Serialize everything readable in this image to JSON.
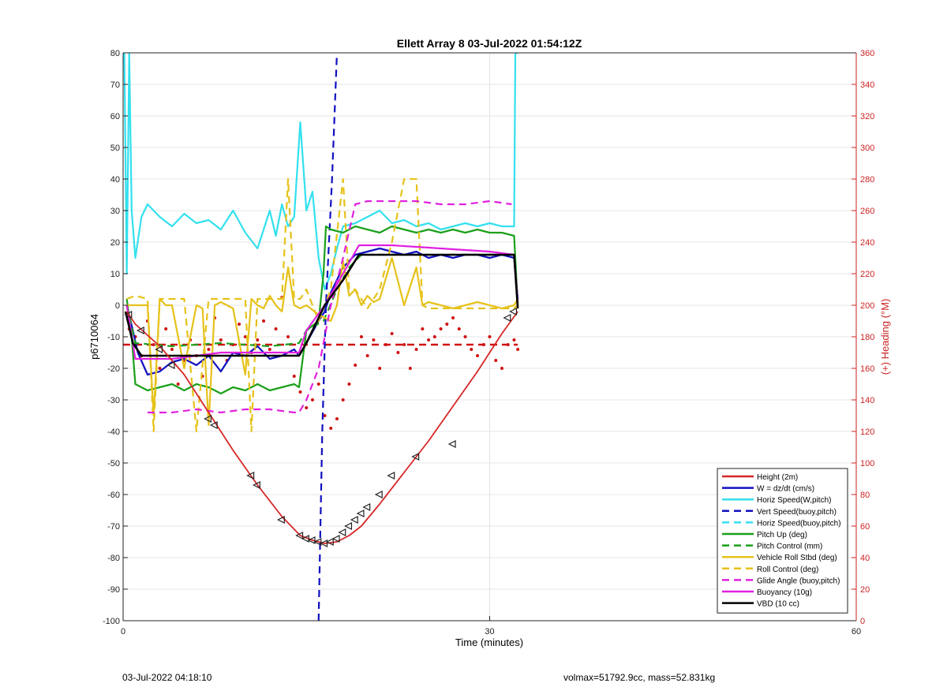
{
  "footer": {
    "timestamp": "03-Jul-2022 04:18:10",
    "info": "volmax=51792.9cc, mass=52.831kg"
  },
  "chart_data": {
    "type": "line",
    "title": "Ellett Array 8 03-Jul-2022 01:54:12Z",
    "xlabel": "Time (minutes)",
    "ylabel": "p6710064",
    "y2label": "(+) Heading (°M)",
    "xlim": [
      0,
      60
    ],
    "ylim": [
      -100,
      80
    ],
    "y2lim": [
      0,
      360
    ],
    "xticks": [
      "0",
      "30",
      "60"
    ],
    "yticks": [
      "80",
      "70",
      "60",
      "50",
      "40",
      "30",
      "20",
      "10",
      "0",
      "-10",
      "-20",
      "-30",
      "-40",
      "-50",
      "-60",
      "-70",
      "-80",
      "-90",
      "-100"
    ],
    "y2ticks": [
      "360",
      "340",
      "320",
      "300",
      "280",
      "260",
      "240",
      "220",
      "200",
      "180",
      "160",
      "140",
      "120",
      "100",
      "80",
      "60",
      "40",
      "20",
      "0"
    ],
    "grid": true,
    "legend_position": "bottom-right",
    "colors": {
      "height": "#d62728",
      "w": "#1010c0",
      "horiz": "#33e0ee",
      "pitch": "#1aa01a",
      "roll": "#e6c21a",
      "glide": "#e020e0",
      "vbd": "#000000",
      "heading": "#d01010",
      "axis_right": "#cc2222"
    },
    "series": [
      {
        "name": "Height (2m)",
        "color": "#d62728",
        "style": "solid",
        "x": [
          0.3,
          1,
          3,
          5,
          7,
          9,
          11,
          13,
          14.5,
          15.5,
          16.5,
          17.5,
          18.5,
          19.5,
          21,
          23,
          25,
          27,
          29,
          31,
          32.3
        ],
        "y": [
          -2,
          -6,
          -13,
          -22,
          -34,
          -46,
          -57,
          -67,
          -73,
          -74.5,
          -75.5,
          -75,
          -73,
          -70,
          -63,
          -53,
          -43,
          -32,
          -21,
          -9,
          -2
        ]
      },
      {
        "name": "W = dz/dt (cm/s)",
        "color": "#1010c0",
        "style": "solid",
        "x": [
          0.3,
          0.8,
          1.2,
          2,
          3,
          4,
          5,
          6,
          7,
          8,
          9,
          10,
          11,
          12,
          13,
          14,
          14.4,
          15,
          16,
          16.5,
          17,
          18,
          19,
          20,
          21,
          22,
          23,
          24,
          25,
          26,
          27,
          28,
          29,
          30,
          31,
          32,
          32.3
        ],
        "y": [
          0,
          -8,
          -15,
          -22,
          -21,
          -18,
          -17,
          -19,
          -16,
          -21,
          -15,
          -16,
          -13,
          -17,
          -16,
          -14,
          -16,
          -12,
          -5,
          -2,
          4,
          12,
          16,
          17,
          18,
          17,
          16,
          17,
          15,
          16,
          15,
          16,
          16,
          15,
          16,
          15,
          2
        ]
      },
      {
        "name": "Horiz Speed(W,pitch)",
        "color": "#33e0ee",
        "style": "solid",
        "x": [
          0.1,
          0.3,
          0.5,
          0.7,
          1,
          1.5,
          2,
          3,
          4,
          5,
          6,
          7,
          8,
          9,
          10,
          11,
          12,
          12.5,
          13,
          13.5,
          14,
          14.5,
          15,
          15.5,
          16,
          16.5,
          17,
          17.5,
          18,
          19,
          20,
          21,
          22,
          23,
          24,
          25,
          26,
          27,
          28,
          29,
          30,
          31,
          32,
          32.1,
          32.3
        ],
        "y": [
          80,
          10,
          80,
          30,
          15,
          28,
          32,
          28,
          25,
          29,
          26,
          27,
          24,
          30,
          23,
          18,
          30,
          22,
          32,
          25,
          28,
          58,
          30,
          36,
          15,
          5,
          10,
          18,
          25,
          26,
          28,
          30,
          26,
          27,
          25,
          26,
          24,
          25,
          26,
          25,
          26,
          25,
          25,
          80,
          80
        ]
      },
      {
        "name": "Vert Speed(buoy,pitch)",
        "color": "#1010c0",
        "style": "dashed",
        "x": [
          16,
          16.1,
          16.3,
          16.6,
          17.1,
          17.5
        ],
        "y": [
          -100,
          -80,
          -40,
          0,
          40,
          80
        ]
      },
      {
        "name": "Horiz Speed(buoy,pitch)",
        "color": "#33e0ee",
        "style": "dashed",
        "x": [],
        "y": []
      },
      {
        "name": "Pitch Up (deg)",
        "color": "#1aa01a",
        "style": "solid",
        "x": [
          0.3,
          0.7,
          1,
          2,
          3,
          4,
          5,
          6,
          7,
          8,
          9,
          10,
          11,
          12,
          13,
          14,
          14.4,
          15,
          16,
          16.4,
          16.6,
          17,
          18,
          19,
          20,
          21,
          22,
          23,
          24,
          25,
          26,
          27,
          28,
          29,
          30,
          31,
          32,
          32.3
        ],
        "y": [
          2,
          -10,
          -25,
          -27,
          -26,
          -25,
          -27,
          -25,
          -26,
          -28,
          -26,
          -27,
          -25,
          -27,
          -26,
          -25,
          -26,
          -8,
          -5,
          10,
          25,
          24,
          23,
          25,
          24,
          23,
          25,
          24,
          23,
          24,
          23,
          24,
          23,
          24,
          23,
          23,
          22,
          0
        ]
      },
      {
        "name": "Pitch Control (mm)",
        "color": "#1aa01a",
        "style": "dashed",
        "x": [
          0.3,
          1,
          4,
          8,
          12,
          14.4,
          15,
          16.4,
          17.5,
          18.5,
          19.5,
          22,
          26,
          30,
          32,
          32.3
        ],
        "y": [
          0,
          -12,
          -13,
          -12,
          -13,
          -12,
          -8,
          -5,
          5,
          12,
          16,
          16,
          16,
          16,
          16,
          0
        ]
      },
      {
        "name": "Vehicle Roll Stbd (deg)",
        "color": "#e6c21a",
        "style": "solid",
        "x": [
          0.3,
          1,
          2,
          2.5,
          3,
          3.5,
          4,
          5,
          6,
          6.5,
          7,
          7.5,
          8,
          9,
          10,
          10.5,
          11,
          11.5,
          12,
          12.5,
          13,
          13.5,
          14,
          14.5,
          15,
          16,
          17,
          17.5,
          18,
          18.5,
          19,
          19.5,
          20,
          20.5,
          21,
          22,
          23,
          24,
          24.5,
          25,
          26,
          27,
          28,
          29,
          30,
          31,
          32,
          32.3
        ],
        "y": [
          0,
          0,
          0,
          -35,
          2,
          0,
          0,
          -20,
          0,
          -1,
          -38,
          0,
          1,
          -1,
          -22,
          2,
          0,
          -1,
          3,
          0,
          -2,
          12,
          0,
          -1,
          0,
          -3,
          -5,
          0,
          14,
          3,
          5,
          0,
          3,
          1,
          2,
          15,
          0,
          12,
          0,
          1,
          0,
          -1,
          0,
          1,
          0,
          -1,
          0,
          2
        ]
      },
      {
        "name": "Roll Control (deg)",
        "color": "#e6c21a",
        "style": "dashed",
        "x": [
          0.3,
          1,
          2,
          2.5,
          3,
          4,
          5,
          6,
          7,
          7.5,
          8,
          9,
          10,
          10.5,
          11,
          12,
          13,
          13.5,
          14,
          14.5,
          15,
          16,
          17,
          18,
          18.5,
          19,
          20,
          21,
          22,
          23,
          24,
          24.5,
          25,
          26,
          28,
          30,
          32,
          32.3
        ],
        "y": [
          2,
          3,
          2,
          -40,
          2,
          2,
          2,
          -40,
          2,
          2,
          2,
          2,
          2,
          -40,
          2,
          2,
          2,
          40,
          2,
          2,
          5,
          -5,
          5,
          40,
          5,
          5,
          -1,
          5,
          20,
          40,
          40,
          0,
          -1,
          -1,
          -1,
          -1,
          -1,
          0
        ]
      },
      {
        "name": "Glide Angle (buoy,pitch)",
        "color": "#e020e0",
        "style": "dashed",
        "x": [
          2,
          4,
          6,
          8,
          10,
          12,
          14,
          14.4,
          15,
          16,
          16.5,
          17,
          18,
          19,
          20,
          22,
          24,
          26,
          28,
          30,
          31.8
        ],
        "y": [
          -34,
          -34,
          -33,
          -34,
          -33,
          -33,
          -34,
          -34,
          -30,
          -20,
          -10,
          0,
          15,
          32,
          33,
          33,
          33,
          32,
          32,
          33,
          32
        ]
      },
      {
        "name": "Buoyancy (10g)",
        "color": "#e020e0",
        "style": "solid",
        "x": [
          0.3,
          1,
          4,
          8,
          12,
          14.4,
          15,
          16.5,
          18,
          19.3,
          22,
          26,
          30,
          32,
          32.3
        ],
        "y": [
          0,
          -17,
          -17,
          -15,
          -15,
          -15,
          -8,
          0,
          10,
          19,
          19,
          18,
          17,
          16,
          1
        ]
      },
      {
        "name": "VBD (10 cc)",
        "color": "#000000",
        "style": "solid",
        "x": [
          0.2,
          0.8,
          1.5,
          4,
          8,
          12,
          14.4,
          15,
          16.5,
          18,
          19.3,
          22,
          26,
          30,
          32,
          32.3
        ],
        "y": [
          -2,
          -12,
          -16,
          -16,
          -16,
          -16,
          -16,
          -12,
          0,
          8,
          16,
          16,
          16,
          16,
          16,
          -1
        ]
      }
    ],
    "heading_dashed": {
      "color": "#d01010",
      "x": [
        0,
        32.3
      ],
      "y2": [
        175,
        175
      ]
    },
    "heading_dots": {
      "color": "#d01010",
      "x": [
        0.5,
        1,
        1.5,
        2,
        2.5,
        3,
        3.5,
        4,
        4.5,
        5,
        5.5,
        6,
        6.5,
        7,
        7.5,
        8,
        8.5,
        9,
        9.5,
        10,
        10.5,
        11,
        11.5,
        12,
        12.5,
        13,
        13.5,
        14,
        14.5,
        15,
        15.5,
        16,
        16.5,
        17,
        17.5,
        18,
        18.5,
        19,
        19.5,
        20,
        20.5,
        21,
        21.5,
        22,
        22.5,
        23,
        23.5,
        24,
        24.5,
        25,
        25.5,
        26,
        26.5,
        27,
        27.5,
        28,
        28.5,
        29,
        29.5,
        30,
        30.5,
        31,
        31.5,
        32,
        32.3
      ],
      "y2": [
        185,
        180,
        168,
        190,
        175,
        160,
        185,
        172,
        150,
        165,
        178,
        168,
        155,
        172,
        192,
        178,
        165,
        175,
        188,
        180,
        170,
        178,
        190,
        172,
        185,
        205,
        180,
        155,
        145,
        135,
        140,
        150,
        130,
        122,
        128,
        140,
        150,
        162,
        180,
        168,
        178,
        160,
        175,
        182,
        170,
        175,
        160,
        172,
        185,
        178,
        180,
        185,
        188,
        192,
        185,
        180,
        172,
        168,
        175,
        180,
        165,
        160,
        175,
        178,
        172
      ]
    },
    "markers": {
      "x": [
        0.5,
        1.5,
        3,
        4,
        7,
        7.5,
        10.5,
        11,
        13,
        14.5,
        15,
        15.5,
        16,
        16.5,
        17,
        17.5,
        18,
        18.5,
        19,
        19.5,
        20,
        21,
        22,
        24,
        27,
        31.5,
        32
      ],
      "y": [
        -3,
        -8,
        -14,
        -19,
        -36,
        -38,
        -54,
        -57,
        -68,
        -73,
        -74,
        -74.5,
        -75,
        -75.5,
        -75,
        -74,
        -72,
        -70,
        -68,
        -66,
        -64,
        -60,
        -54,
        -48,
        -44,
        -4,
        -2
      ]
    }
  }
}
